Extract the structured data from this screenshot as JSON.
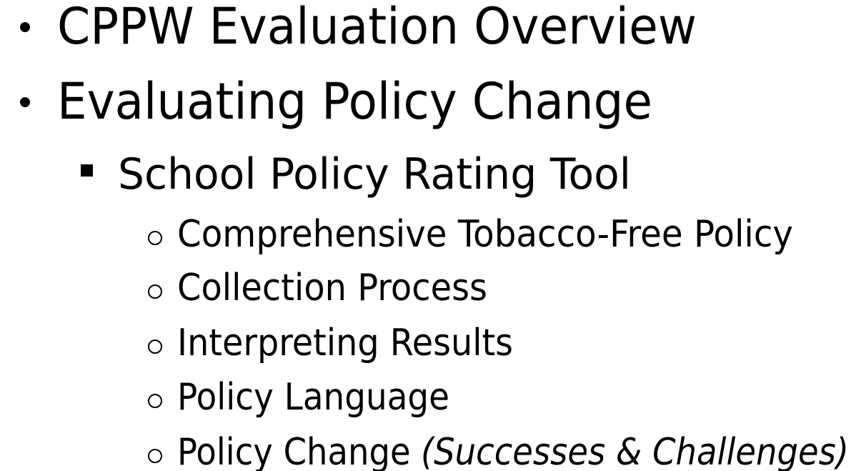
{
  "items": [
    {
      "text": "CPPW Evaluation Overview"
    },
    {
      "text": "Evaluating Policy Change"
    },
    {
      "text": "School Policy Rating Tool"
    },
    {
      "text": "Comprehensive Tobacco-Free Policy"
    },
    {
      "text": "Collection Process"
    },
    {
      "text": "Interpreting Results"
    },
    {
      "text": "Policy Language"
    },
    {
      "text": "Policy Change",
      "emphasis": "(Successes & Challenges)"
    }
  ]
}
